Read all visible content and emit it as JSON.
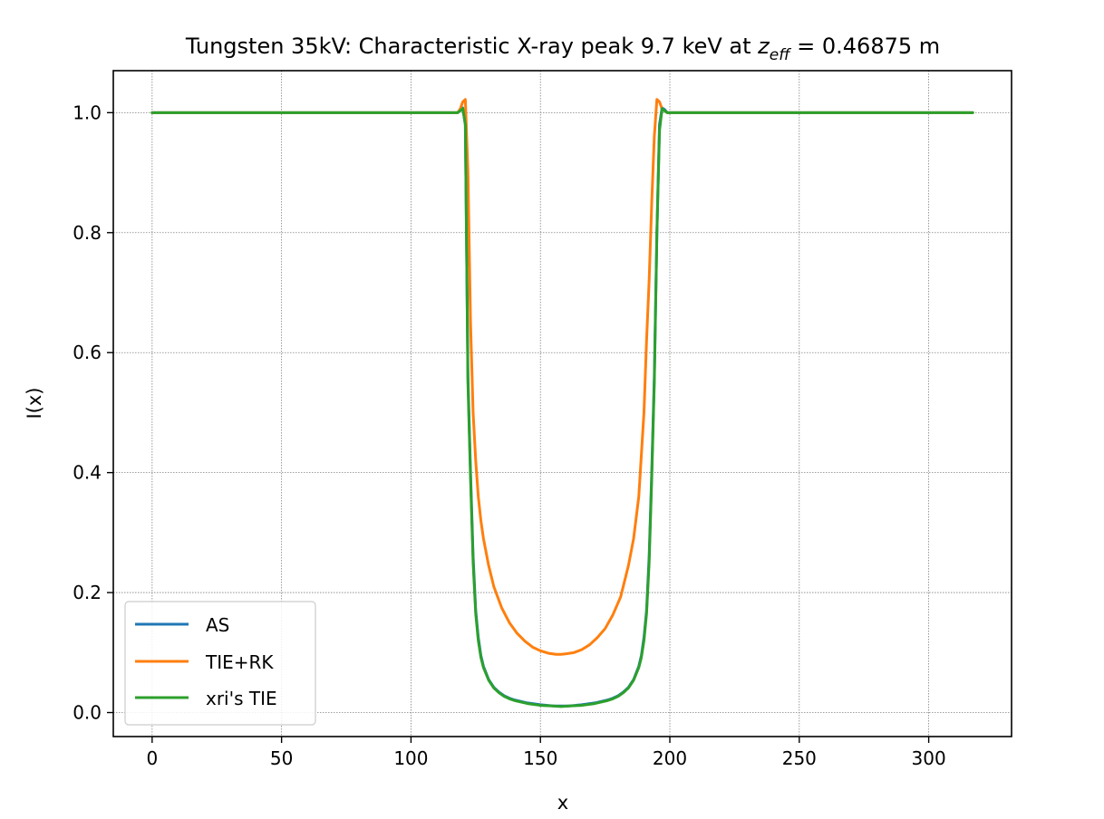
{
  "chart_data": {
    "type": "line",
    "title_main": "Tungsten 35kV: Characteristic X-ray peak 9.7 keV at ",
    "title_var": "z",
    "title_sub": "eff",
    "title_tail": " = 0.46875 m",
    "xlabel": "x",
    "ylabel": "I(x)",
    "xlim": [
      -15,
      332
    ],
    "ylim": [
      -0.04,
      1.07
    ],
    "xticks": [
      0,
      50,
      100,
      150,
      200,
      250,
      300
    ],
    "yticks": [
      0.0,
      0.2,
      0.4,
      0.6,
      0.8,
      1.0
    ],
    "xtick_labels": [
      "0",
      "50",
      "100",
      "150",
      "200",
      "250",
      "300"
    ],
    "ytick_labels": [
      "0.0",
      "0.2",
      "0.4",
      "0.6",
      "0.8",
      "1.0"
    ],
    "grid": true,
    "legend_position": "lower-left",
    "series": [
      {
        "name": "AS",
        "color": "#1f77b4",
        "x": [
          0,
          110,
          118,
          119,
          120,
          121,
          122,
          123,
          124,
          125,
          126,
          127,
          128,
          130,
          132,
          134,
          136,
          138,
          140,
          145,
          150,
          155,
          158,
          161,
          166,
          171,
          176,
          178,
          180,
          182,
          184,
          186,
          188,
          189,
          190,
          191,
          192,
          193,
          194,
          195,
          196,
          197,
          198,
          199,
          206,
          317
        ],
        "y": [
          1.0,
          1.0,
          1.0,
          1.005,
          1.008,
          0.98,
          0.56,
          0.4,
          0.26,
          0.17,
          0.125,
          0.095,
          0.077,
          0.055,
          0.042,
          0.034,
          0.028,
          0.024,
          0.021,
          0.016,
          0.013,
          0.011,
          0.011,
          0.011,
          0.013,
          0.016,
          0.021,
          0.024,
          0.028,
          0.034,
          0.042,
          0.055,
          0.077,
          0.095,
          0.125,
          0.17,
          0.26,
          0.4,
          0.56,
          0.8,
          0.98,
          1.008,
          1.005,
          1.0,
          1.0,
          1.0
        ]
      },
      {
        "name": "TIE+RK",
        "color": "#ff7f0e",
        "x": [
          0,
          110,
          118,
          119,
          120,
          121,
          122,
          123,
          124,
          125,
          126,
          127,
          128,
          130,
          132,
          135,
          138,
          141,
          144,
          147,
          150,
          153,
          156,
          158,
          160,
          163,
          166,
          169,
          172,
          175,
          178,
          181,
          184,
          186,
          188,
          190,
          191,
          192,
          193,
          194,
          195,
          196,
          197,
          198,
          199,
          206,
          317
        ],
        "y": [
          1.0,
          1.0,
          1.0,
          1.006,
          1.018,
          1.022,
          0.9,
          0.65,
          0.5,
          0.42,
          0.36,
          0.32,
          0.29,
          0.245,
          0.21,
          0.175,
          0.15,
          0.132,
          0.119,
          0.109,
          0.103,
          0.099,
          0.097,
          0.097,
          0.098,
          0.1,
          0.105,
          0.113,
          0.125,
          0.14,
          0.163,
          0.193,
          0.245,
          0.29,
          0.36,
          0.5,
          0.62,
          0.72,
          0.85,
          0.96,
          1.022,
          1.018,
          1.006,
          1.003,
          1.0,
          1.0,
          1.0
        ]
      },
      {
        "name": "xri's TIE",
        "color": "#2ca02c",
        "x": [
          0,
          110,
          118,
          119,
          120,
          121,
          122,
          123,
          124,
          125,
          126,
          127,
          128,
          130,
          132,
          134,
          136,
          138,
          140,
          145,
          150,
          155,
          158,
          161,
          166,
          171,
          176,
          178,
          180,
          182,
          184,
          186,
          188,
          189,
          190,
          191,
          192,
          193,
          194,
          195,
          196,
          197,
          198,
          199,
          206,
          317
        ],
        "y": [
          1.0,
          1.0,
          1.0,
          1.003,
          1.007,
          0.98,
          0.55,
          0.39,
          0.25,
          0.165,
          0.12,
          0.092,
          0.075,
          0.054,
          0.041,
          0.033,
          0.027,
          0.023,
          0.02,
          0.015,
          0.012,
          0.011,
          0.01,
          0.011,
          0.012,
          0.015,
          0.02,
          0.023,
          0.027,
          0.033,
          0.041,
          0.054,
          0.075,
          0.092,
          0.12,
          0.165,
          0.25,
          0.39,
          0.55,
          0.8,
          0.97,
          1.007,
          1.003,
          1.0,
          1.0,
          1.0
        ]
      }
    ]
  }
}
